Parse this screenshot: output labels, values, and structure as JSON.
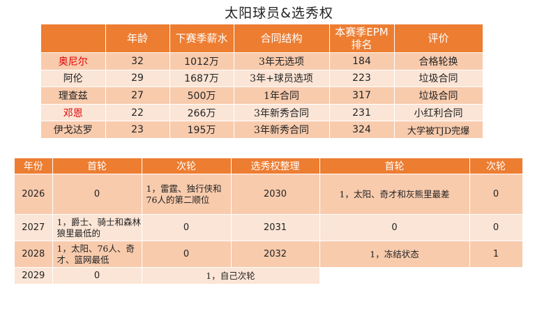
{
  "title": "太阳球员&选秀权",
  "players": {
    "headers": [
      "",
      "年龄",
      "下赛季薪水",
      "合同结构",
      "本赛季EPM排名",
      "评价"
    ],
    "rows": [
      {
        "name": "奥尼尔",
        "age": "32",
        "salary": "1012万",
        "contract": "3年无选项",
        "epm": "184",
        "rating": "合格轮换",
        "name_color": "#e00000"
      },
      {
        "name": "阿伦",
        "age": "29",
        "salary": "1687万",
        "contract": "3年+球员选项",
        "epm": "223",
        "rating": "垃圾合同",
        "name_color": "#222222"
      },
      {
        "name": "理查兹",
        "age": "27",
        "salary": "500万",
        "contract": "1年合同",
        "epm": "317",
        "rating": "垃圾合同",
        "name_color": "#222222"
      },
      {
        "name": "邓恩",
        "age": "22",
        "salary": "266万",
        "contract": "3年新秀合同",
        "epm": "231",
        "rating": "小红利合同",
        "name_color": "#e00000"
      },
      {
        "name": "伊戈达罗",
        "age": "23",
        "salary": "195万",
        "contract": "3年新秀合同",
        "epm": "324",
        "rating": "大学被TJD完爆",
        "name_color": "#222222"
      }
    ]
  },
  "picks": {
    "headers": [
      "年份",
      "首轮",
      "次轮",
      "选秀权整理",
      "首轮",
      "次轮"
    ],
    "rows": [
      {
        "year": "2026",
        "first": "0",
        "second": "1，雷霆、独行侠和76人的第二顺位",
        "sum_year": "2030",
        "sum_first": "1，太阳、奇才和灰熊里最差",
        "sum_second": "0"
      },
      {
        "year": "2027",
        "first": "1，爵士、骑士和森林狼里最低的",
        "second": "0",
        "sum_year": "2031",
        "sum_first": "0",
        "sum_second": "0"
      },
      {
        "year": "2028",
        "first": "1，太阳、76人、奇才、篮网最低",
        "second": "0",
        "sum_year": "2032",
        "sum_first": "1，冻结状态",
        "sum_second": "1"
      },
      {
        "year": "2029",
        "first": "0",
        "second": "1，自己次轮"
      }
    ]
  },
  "colors": {
    "header": "#ed7d31",
    "row_odd": "#f8cbad",
    "row_even": "#fbe5d6",
    "highlight_name": "#e00000"
  }
}
